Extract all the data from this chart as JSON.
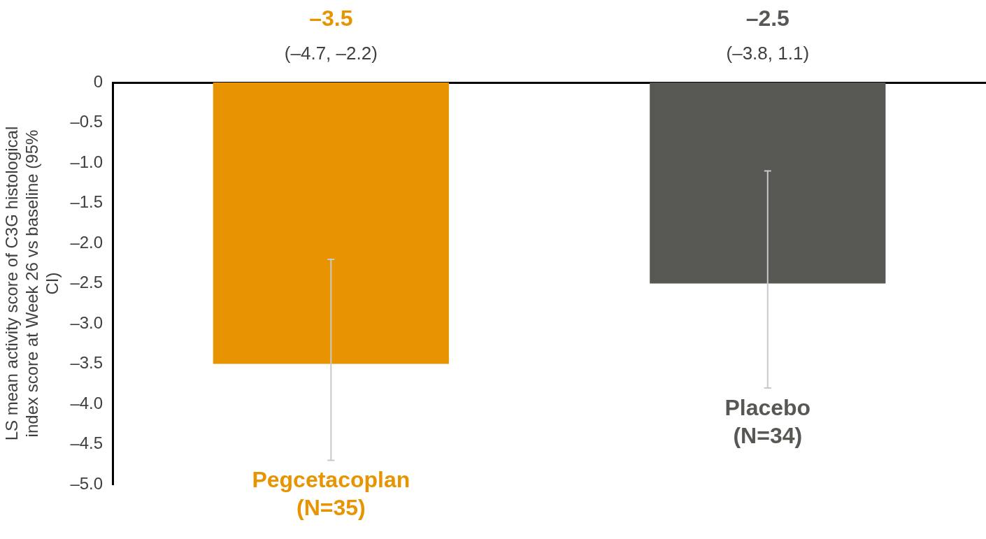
{
  "chart_data": {
    "type": "bar",
    "ylabel": "LS mean activity score of C3G histological index score at Week 26 vs baseline (95% CI)",
    "categories": [
      "Pegcetacoplan (N=35)",
      "Placebo (N=34)"
    ],
    "values": [
      -3.5,
      -2.5
    ],
    "colors": [
      "#e89400",
      "#575853"
    ],
    "errors": [
      [
        -4.7,
        -2.2
      ],
      [
        -3.8,
        -1.1
      ]
    ],
    "value_labels": [
      "–3.5",
      "–2.5"
    ],
    "annotations": [
      "(–4.7, –2.2)",
      "(–3.8, 1.1)"
    ],
    "ylim": [
      -5,
      0
    ],
    "yticks": [
      {
        "value": 0,
        "label": "0"
      },
      {
        "value": -0.5,
        "label": "–0.5"
      },
      {
        "value": -1,
        "label": "–1.0"
      },
      {
        "value": -1.5,
        "label": "–1.5"
      },
      {
        "value": -2,
        "label": "–2.0"
      },
      {
        "value": -2.5,
        "label": "–2.5"
      },
      {
        "value": -3,
        "label": "–3.0"
      },
      {
        "value": -3.5,
        "label": "–3.5"
      },
      {
        "value": -4,
        "label": "–4.0"
      },
      {
        "value": -4.5,
        "label": "–4.5"
      },
      {
        "value": -5,
        "label": "–5.0"
      }
    ],
    "grid": false,
    "legend": false
  }
}
